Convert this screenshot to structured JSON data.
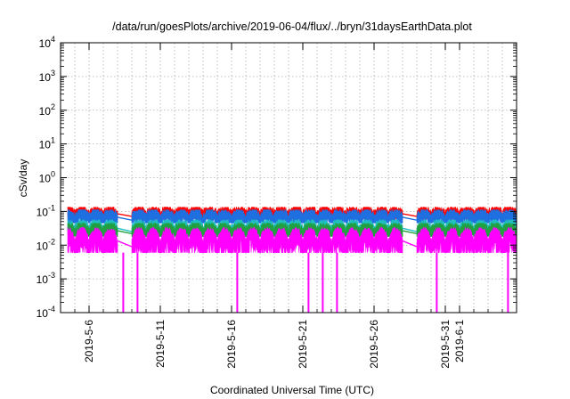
{
  "chart_data": {
    "type": "area",
    "title": "/data/run/goesPlots/archive/2019-06-04/flux/../bryn/31daysEarthData.plot",
    "xlabel": "Coordinated Universal Time (UTC)",
    "ylabel": "cSv/day",
    "yscale": "log",
    "ylim": [
      0.0001,
      10000
    ],
    "xlim": [
      "2019-05-04",
      "2019-06-05"
    ],
    "grid": true,
    "x_ticks": [
      "2019-5-6",
      "2019-5-11",
      "2019-5-16",
      "2019-5-21",
      "2019-5-26",
      "2019-5-31",
      "2019-6-1"
    ],
    "y_ticks": [
      {
        "base": "10",
        "exp": "-4",
        "value": 0.0001
      },
      {
        "base": "10",
        "exp": "-3",
        "value": 0.001
      },
      {
        "base": "10",
        "exp": "-2",
        "value": 0.01
      },
      {
        "base": "10",
        "exp": "-1",
        "value": 0.1
      },
      {
        "base": "10",
        "exp": "0",
        "value": 1
      },
      {
        "base": "10",
        "exp": "1",
        "value": 10
      },
      {
        "base": "10",
        "exp": "2",
        "value": 100
      },
      {
        "base": "10",
        "exp": "3",
        "value": 1000
      },
      {
        "base": "10",
        "exp": "4",
        "value": 10000
      }
    ],
    "data_gaps": [
      [
        "2019-05-08",
        "2019-05-09"
      ],
      [
        "2019-05-28",
        "2019-05-29"
      ]
    ],
    "series": [
      {
        "color": "#ff0000",
        "peak": 0.12,
        "trough": 0.06
      },
      {
        "color": "#1e6fe0",
        "peak": 0.1,
        "trough": 0.045
      },
      {
        "color": "#20c0c0",
        "peak": 0.05,
        "trough": 0.02
      },
      {
        "color": "#20a040",
        "peak": 0.04,
        "trough": 0.018
      },
      {
        "color": "#ff00ff",
        "peak": 0.03,
        "trough": 0.006,
        "dropouts": [
          "2019-05-08",
          "2019-05-09",
          "2019-05-16",
          "2019-05-21",
          "2019-05-22",
          "2019-05-23",
          "2019-05-30",
          "2019-06-04"
        ]
      }
    ]
  }
}
